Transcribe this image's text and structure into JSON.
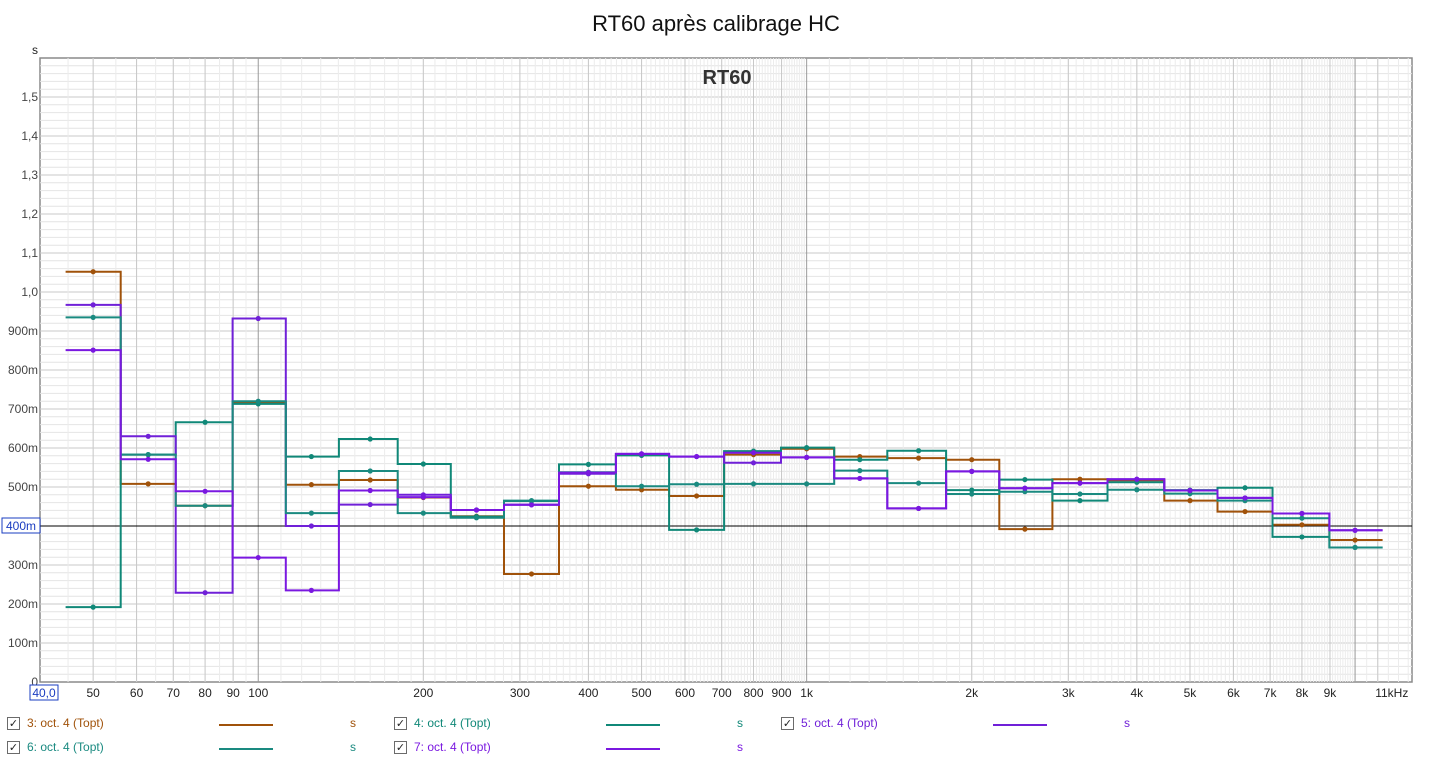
{
  "title": "RT60 après calibrage HC",
  "chart_data": {
    "type": "line",
    "title": "RT60 après calibrage HC",
    "subtitle": "RT60",
    "ylabel": "s",
    "xlabel": "",
    "x_scale": "log",
    "y_scale": "linear",
    "xlim": [
      40,
      12700
    ],
    "ylim": [
      0,
      1.6
    ],
    "grid": true,
    "cursor_value": 0.4,
    "cursor_label": "400m",
    "x_start_label": "40,0",
    "x_ticks": [
      {
        "v": 50,
        "l": "50"
      },
      {
        "v": 60,
        "l": "60"
      },
      {
        "v": 70,
        "l": "70"
      },
      {
        "v": 80,
        "l": "80"
      },
      {
        "v": 90,
        "l": "90"
      },
      {
        "v": 100,
        "l": "100"
      },
      {
        "v": 200,
        "l": "200"
      },
      {
        "v": 300,
        "l": "300"
      },
      {
        "v": 400,
        "l": "400"
      },
      {
        "v": 500,
        "l": "500"
      },
      {
        "v": 600,
        "l": "600"
      },
      {
        "v": 700,
        "l": "700"
      },
      {
        "v": 800,
        "l": "800"
      },
      {
        "v": 900,
        "l": "900"
      },
      {
        "v": 1000,
        "l": "1k"
      },
      {
        "v": 2000,
        "l": "2k"
      },
      {
        "v": 3000,
        "l": "3k"
      },
      {
        "v": 4000,
        "l": "4k"
      },
      {
        "v": 5000,
        "l": "5k"
      },
      {
        "v": 6000,
        "l": "6k"
      },
      {
        "v": 7000,
        "l": "7k"
      },
      {
        "v": 8000,
        "l": "8k"
      },
      {
        "v": 9000,
        "l": "9k"
      },
      {
        "v": 11000,
        "l": "11kHz"
      }
    ],
    "y_ticks": [
      {
        "v": 0,
        "l": "0"
      },
      {
        "v": 0.1,
        "l": "100m"
      },
      {
        "v": 0.2,
        "l": "200m"
      },
      {
        "v": 0.3,
        "l": "300m"
      },
      {
        "v": 0.5,
        "l": "500m"
      },
      {
        "v": 0.6,
        "l": "600m"
      },
      {
        "v": 0.7,
        "l": "700m"
      },
      {
        "v": 0.8,
        "l": "800m"
      },
      {
        "v": 0.9,
        "l": "900m"
      },
      {
        "v": 1.0,
        "l": "1,0"
      },
      {
        "v": 1.1,
        "l": "1,1"
      },
      {
        "v": 1.2,
        "l": "1,2"
      },
      {
        "v": 1.3,
        "l": "1,3"
      },
      {
        "v": 1.4,
        "l": "1,4"
      },
      {
        "v": 1.5,
        "l": "1,5"
      }
    ],
    "band_centers": [
      50,
      63,
      80,
      100,
      125,
      160,
      200,
      250,
      315,
      400,
      500,
      630,
      800,
      1000,
      1250,
      1600,
      2000,
      2500,
      3150,
      4000,
      5000,
      6300,
      8000,
      10000
    ],
    "series": [
      {
        "name": "3: oct. 4 (Topt)",
        "color": "#a0520a",
        "values": [
          1.052,
          0.508,
          0.452,
          0.718,
          0.506,
          0.518,
          0.473,
          0.425,
          0.277,
          0.502,
          0.493,
          0.477,
          0.583,
          0.598,
          0.578,
          0.574,
          0.57,
          0.392,
          0.52,
          0.517,
          0.465,
          0.437,
          0.403,
          0.364
        ]
      },
      {
        "name": "4: oct. 4 (Topt)",
        "color": "#108878",
        "values": [
          0.192,
          0.583,
          0.666,
          0.713,
          0.578,
          0.623,
          0.559,
          0.424,
          0.464,
          0.558,
          0.581,
          0.39,
          0.592,
          0.601,
          0.57,
          0.593,
          0.492,
          0.519,
          0.465,
          0.512,
          0.492,
          0.498,
          0.372,
          0.345
        ]
      },
      {
        "name": "5: oct. 4 (Topt)",
        "color": "#7020d8",
        "values": [
          0.967,
          0.63,
          0.229,
          0.932,
          0.4,
          0.455,
          0.48,
          0.441,
          0.455,
          0.534,
          0.585,
          0.578,
          0.562,
          0.576,
          0.522,
          0.445,
          0.54,
          0.497,
          0.51,
          0.52,
          0.491,
          0.472,
          0.432,
          0.389
        ]
      },
      {
        "name": "6: oct. 4 (Topt)",
        "color": "#1a8a80",
        "values": [
          0.935,
          0.583,
          0.452,
          0.72,
          0.433,
          0.541,
          0.433,
          0.421,
          0.465,
          0.538,
          0.502,
          0.507,
          0.508,
          0.508,
          0.542,
          0.51,
          0.482,
          0.488,
          0.482,
          0.493,
          0.483,
          0.465,
          0.42,
          0.345
        ]
      },
      {
        "name": "7: oct. 4 (Topt)",
        "color": "#7a18e0",
        "values": [
          0.851,
          0.571,
          0.489,
          0.319,
          0.235,
          0.491,
          0.474,
          0.441,
          0.454,
          0.537,
          0.585,
          0.578,
          0.588,
          0.576,
          0.522,
          0.445,
          0.54,
          0.497,
          0.51,
          0.52,
          0.491,
          0.472,
          0.432,
          0.389
        ]
      }
    ]
  },
  "legend": {
    "unit": "s",
    "items": [
      {
        "label": "3: oct. 4 (Topt)",
        "color": "#a0520a",
        "checked": "✓"
      },
      {
        "label": "4: oct. 4 (Topt)",
        "color": "#108878",
        "checked": "✓"
      },
      {
        "label": "5: oct. 4 (Topt)",
        "color": "#7020d8",
        "checked": "✓"
      },
      {
        "label": "6: oct. 4 (Topt)",
        "color": "#1a8a80",
        "checked": "✓"
      },
      {
        "label": "7: oct. 4 (Topt)",
        "color": "#7a18e0",
        "checked": "✓"
      }
    ]
  }
}
